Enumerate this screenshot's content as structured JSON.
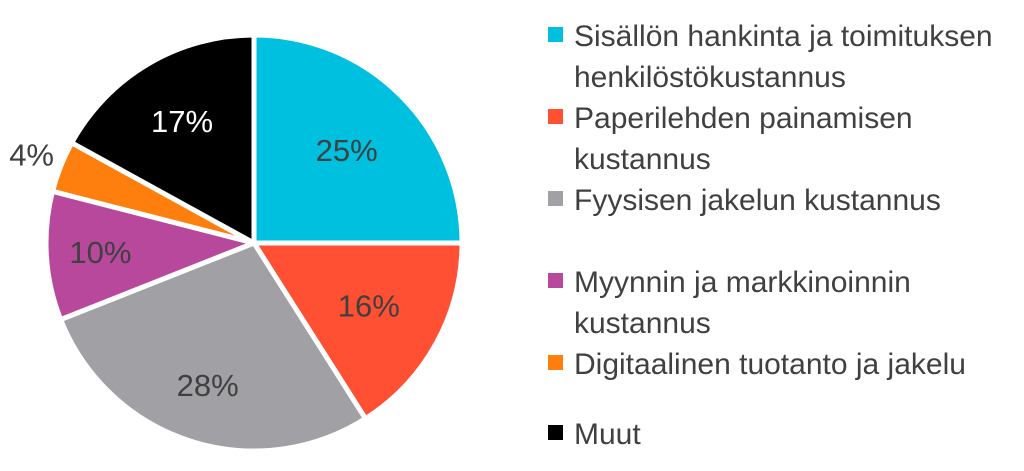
{
  "chart_data": {
    "type": "pie",
    "title": "",
    "categories": [
      "Sisällön hankinta ja toimituksen henkilöstökustannus",
      "Paperilehden painamisen kustannus",
      "Fyysisen jakelun kustannus",
      "Myynnin ja markkinoinnin kustannus",
      "Digitaalinen tuotanto ja jakelu",
      "Muut"
    ],
    "values": [
      25,
      16,
      28,
      10,
      4,
      17
    ],
    "labels": [
      "25%",
      "16%",
      "28%",
      "10%",
      "4%",
      "17%"
    ],
    "colors": [
      "#00C0E0",
      "#FF5033",
      "#A0A0A5",
      "#B8489C",
      "#FF7F0E",
      "#000000"
    ],
    "label_colors": [
      "#404040",
      "#404040",
      "#404040",
      "#404040",
      "#404040",
      "#ffffff"
    ],
    "legend_position": "right",
    "start_angle": "12 o'clock",
    "direction": "clockwise"
  }
}
